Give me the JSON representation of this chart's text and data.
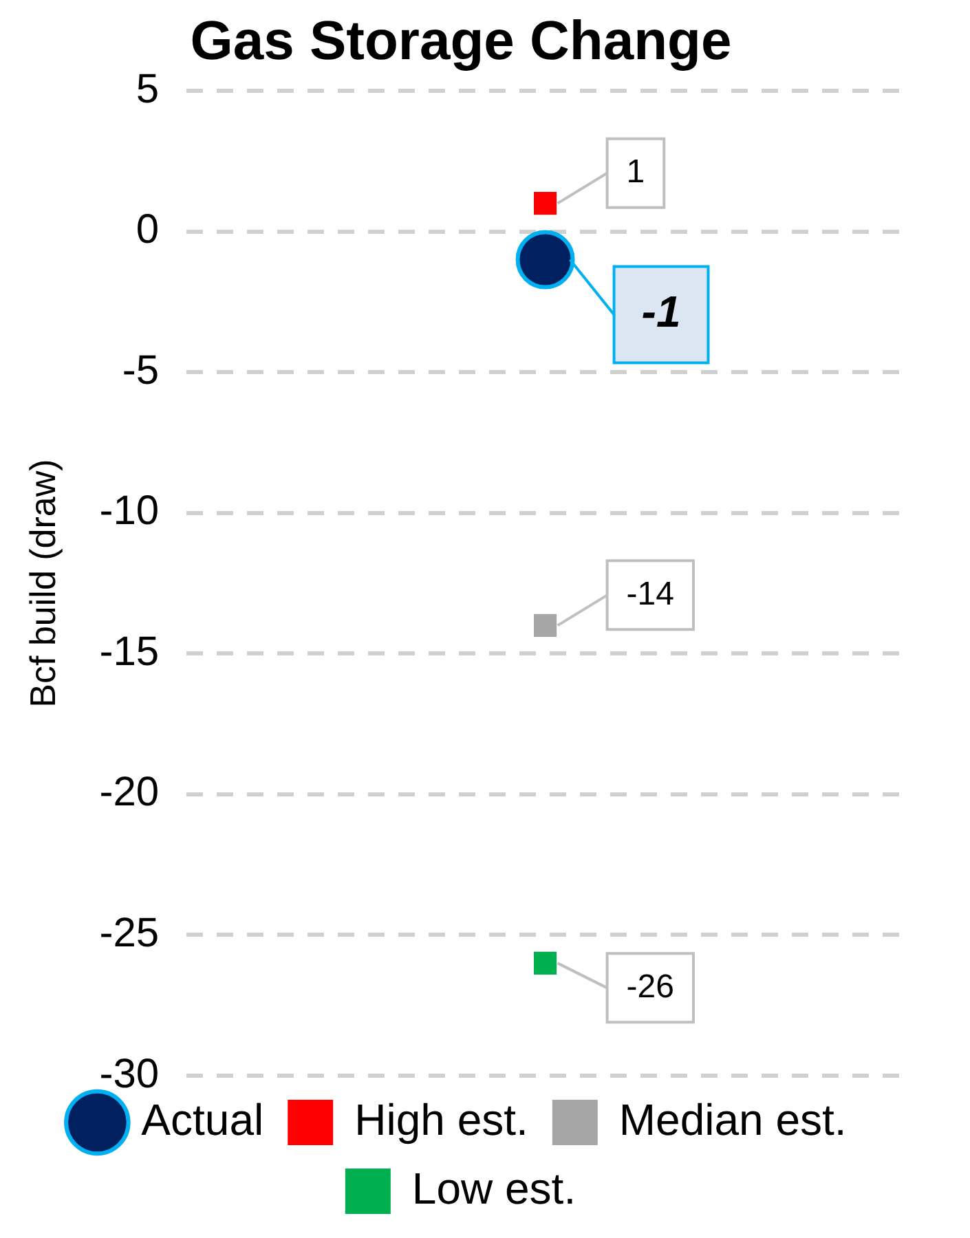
{
  "chart_data": {
    "type": "scatter",
    "title": "Gas Storage Change",
    "ylabel": "Bcf build (draw)",
    "categories": [
      null
    ],
    "series": [
      {
        "name": "High est.",
        "color": "#ff0000",
        "values": [
          1
        ],
        "marker": "square"
      },
      {
        "name": "Median est.",
        "color": "#a6a6a6",
        "values": [
          -14
        ],
        "marker": "square"
      },
      {
        "name": "Low est.",
        "color": "#00b050",
        "values": [
          -26
        ],
        "marker": "square"
      },
      {
        "name": "Actual",
        "color": "#002060",
        "values": [
          -1
        ],
        "marker": "circle"
      }
    ],
    "ylim": [
      -30,
      5
    ],
    "yticks": [
      -30,
      -25,
      -20,
      -15,
      -10,
      -5,
      0,
      5
    ],
    "grid": "y",
    "legend": "bottom",
    "data_labels": true,
    "tick_labels": "y"
  }
}
